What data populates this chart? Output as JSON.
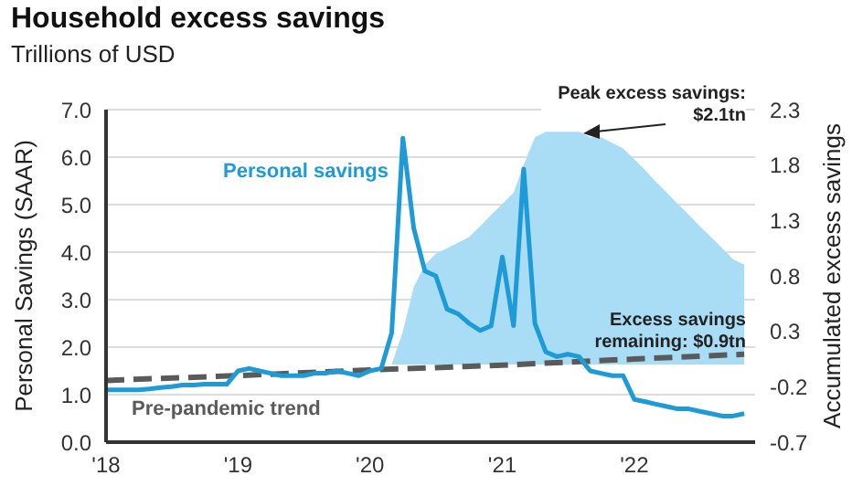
{
  "chart_data": {
    "type": "line",
    "title": "Household excess savings",
    "subtitle": "Trillions of USD",
    "ylabel": "Personal Savings (SAAR)",
    "y2label": "Accumulated excess savings",
    "xlim": [
      "2018-01",
      "2022-12"
    ],
    "xticks": [
      {
        "value": "2018-01",
        "label": "'18"
      },
      {
        "value": "2019-01",
        "label": "'19"
      },
      {
        "value": "2020-01",
        "label": "'20"
      },
      {
        "value": "2021-01",
        "label": "'21"
      },
      {
        "value": "2022-01",
        "label": "'22"
      }
    ],
    "ylim": [
      0,
      7
    ],
    "yticks": [
      {
        "value": 0,
        "label": "0.0"
      },
      {
        "value": 1,
        "label": "1.0"
      },
      {
        "value": 2,
        "label": "2.0"
      },
      {
        "value": 3,
        "label": "3.0"
      },
      {
        "value": 4,
        "label": "4.0"
      },
      {
        "value": 5,
        "label": "5.0"
      },
      {
        "value": 6,
        "label": "6.0"
      },
      {
        "value": 7,
        "label": "7.0"
      }
    ],
    "y2lim": [
      -0.7,
      2.3
    ],
    "y2ticks": [
      -0.7,
      -0.2,
      0.3,
      0.8,
      1.3,
      1.8,
      2.3
    ],
    "grid": "y",
    "series": [
      {
        "type": "area",
        "axis": "y2",
        "color": "#a9dcf5",
        "x": [
          "2020-03",
          "2020-04",
          "2020-05",
          "2020-06",
          "2020-07",
          "2020-08",
          "2020-09",
          "2020-10",
          "2020-11",
          "2020-12",
          "2021-01",
          "2021-02",
          "2021-03",
          "2021-04",
          "2021-05",
          "2021-06",
          "2021-07",
          "2021-08",
          "2021-09",
          "2021-10",
          "2021-11",
          "2021-12",
          "2022-01",
          "2022-02",
          "2022-03",
          "2022-04",
          "2022-05",
          "2022-06",
          "2022-07",
          "2022-08",
          "2022-09",
          "2022-10",
          "2022-11"
        ],
        "values": [
          0,
          0.3,
          0.7,
          0.9,
          1.0,
          1.05,
          1.1,
          1.15,
          1.25,
          1.35,
          1.45,
          1.55,
          1.8,
          2.05,
          2.1,
          2.1,
          2.1,
          2.1,
          2.05,
          2.05,
          2.0,
          1.95,
          1.85,
          1.75,
          1.65,
          1.55,
          1.45,
          1.35,
          1.25,
          1.15,
          1.05,
          0.95,
          0.9
        ]
      },
      {
        "name": "Pre-pandemic trend",
        "color": "#5a5a5a",
        "line_style": "dashed",
        "x": [
          "2018-01",
          "2019-01",
          "2020-01",
          "2021-01",
          "2022-01",
          "2022-11"
        ],
        "values": [
          1.3,
          1.4,
          1.52,
          1.62,
          1.75,
          1.85
        ]
      },
      {
        "name": "Personal savings",
        "color": "#1e9ad6",
        "line_style": "solid",
        "x": [
          "2018-01",
          "2018-02",
          "2018-03",
          "2018-04",
          "2018-05",
          "2018-06",
          "2018-07",
          "2018-08",
          "2018-09",
          "2018-10",
          "2018-11",
          "2018-12",
          "2019-01",
          "2019-02",
          "2019-03",
          "2019-04",
          "2019-05",
          "2019-06",
          "2019-07",
          "2019-08",
          "2019-09",
          "2019-10",
          "2019-11",
          "2019-12",
          "2020-01",
          "2020-02",
          "2020-03",
          "2020-04",
          "2020-05",
          "2020-06",
          "2020-07",
          "2020-08",
          "2020-09",
          "2020-10",
          "2020-11",
          "2020-12",
          "2021-01",
          "2021-02",
          "2021-03",
          "2021-04",
          "2021-05",
          "2021-06",
          "2021-07",
          "2021-08",
          "2021-09",
          "2021-10",
          "2021-11",
          "2021-12",
          "2022-01",
          "2022-02",
          "2022-03",
          "2022-04",
          "2022-05",
          "2022-06",
          "2022-07",
          "2022-08",
          "2022-09",
          "2022-10",
          "2022-11"
        ],
        "values": [
          1.1,
          1.1,
          1.1,
          1.1,
          1.12,
          1.15,
          1.17,
          1.2,
          1.2,
          1.22,
          1.22,
          1.22,
          1.5,
          1.55,
          1.5,
          1.45,
          1.4,
          1.4,
          1.4,
          1.45,
          1.45,
          1.5,
          1.45,
          1.4,
          1.5,
          1.55,
          2.3,
          6.4,
          4.5,
          3.6,
          3.5,
          2.8,
          2.7,
          2.5,
          2.35,
          2.45,
          3.9,
          2.45,
          5.75,
          2.5,
          1.9,
          1.8,
          1.85,
          1.8,
          1.5,
          1.45,
          1.4,
          1.4,
          0.9,
          0.85,
          0.8,
          0.75,
          0.7,
          0.7,
          0.65,
          0.6,
          0.55,
          0.55,
          0.6
        ]
      }
    ],
    "annotations": [
      "Peak excess savings: $2.1tn",
      "Excess savings remaining: $0.9tn"
    ]
  }
}
